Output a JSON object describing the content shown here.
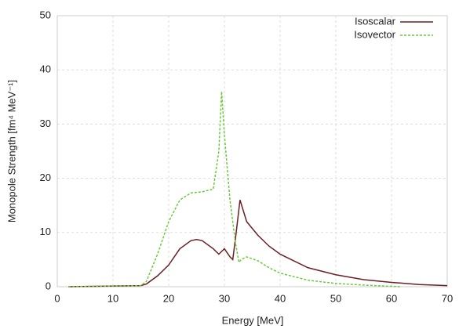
{
  "chart_data": {
    "type": "line",
    "x_label": "Energy [MeV]",
    "y_label": "Monopole Strength [fm⁴ MeV⁻¹]",
    "xlim": [
      0,
      70
    ],
    "ylim": [
      0,
      50
    ],
    "xticks": [
      0,
      10,
      20,
      30,
      40,
      50,
      60,
      70
    ],
    "yticks": [
      0,
      10,
      20,
      30,
      40,
      50
    ],
    "grid": true,
    "legend": "upper right",
    "series": [
      {
        "name": "Isoscalar",
        "color": "#6b1e24",
        "dash": false,
        "x": [
          2,
          15,
          16,
          18,
          20,
          22,
          24,
          25,
          26,
          28,
          29,
          29.5,
          30,
          31,
          31.5,
          32,
          32.8,
          34,
          36,
          38,
          40,
          45,
          50,
          55,
          60,
          65,
          70
        ],
        "values": [
          0,
          0.2,
          0.5,
          2,
          4,
          7,
          8.5,
          8.7,
          8.5,
          7,
          6,
          6.5,
          7,
          5.5,
          5,
          9,
          16,
          12,
          9.5,
          7.5,
          6,
          3.5,
          2.2,
          1.3,
          0.8,
          0.4,
          0.2
        ]
      },
      {
        "name": "Isovector",
        "color": "#6cc93a",
        "dash": true,
        "x": [
          2,
          15,
          16,
          18,
          20,
          22,
          24,
          26,
          28,
          29,
          29.5,
          30,
          31,
          32,
          32.6,
          33,
          34,
          36,
          38,
          40,
          45,
          50,
          55,
          61.5
        ],
        "values": [
          0,
          0.2,
          1,
          6,
          12,
          16,
          17.3,
          17.5,
          18,
          25,
          36,
          28,
          16,
          8,
          4.5,
          5,
          5.5,
          4.8,
          3.5,
          2.5,
          1.2,
          0.6,
          0.3,
          0
        ]
      }
    ]
  }
}
